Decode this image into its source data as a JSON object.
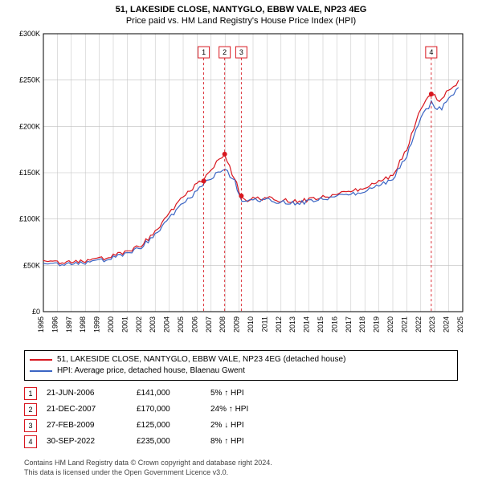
{
  "title_line1": "51, LAKESIDE CLOSE, NANTYGLO, EBBW VALE, NP23 4EG",
  "title_line2": "Price paid vs. HM Land Registry's House Price Index (HPI)",
  "title_fontsize": 11,
  "chart": {
    "type": "line",
    "background_color": "#ffffff",
    "grid_color": "#bfbfbf",
    "axis_color": "#000000",
    "xlim": [
      1995,
      2025
    ],
    "ylim": [
      0,
      300000
    ],
    "ytick_step": 50000,
    "yticklabels": [
      "£0",
      "£50K",
      "£100K",
      "£150K",
      "£200K",
      "£250K",
      "£300K"
    ],
    "xticklabels": [
      "1995",
      "1996",
      "1997",
      "1998",
      "1999",
      "2000",
      "2001",
      "2002",
      "2003",
      "2004",
      "2005",
      "2006",
      "2007",
      "2008",
      "2009",
      "2010",
      "2011",
      "2012",
      "2013",
      "2014",
      "2015",
      "2016",
      "2017",
      "2018",
      "2019",
      "2020",
      "2021",
      "2022",
      "2023",
      "2024",
      "2025"
    ],
    "tick_fontsize": 9,
    "line_width": 1.2,
    "series": [
      {
        "name": "property",
        "color": "#d8171f",
        "base": [
          [
            1995,
            55000
          ],
          [
            1996,
            54000
          ],
          [
            1997,
            53000
          ],
          [
            1998,
            55000
          ],
          [
            1999,
            57000
          ],
          [
            2000,
            60000
          ],
          [
            2001,
            65000
          ],
          [
            2002,
            72000
          ],
          [
            2003,
            85000
          ],
          [
            2004,
            105000
          ],
          [
            2005,
            125000
          ],
          [
            2006,
            138000
          ],
          [
            2006.47,
            141000
          ],
          [
            2007,
            155000
          ],
          [
            2007.97,
            170000
          ],
          [
            2008.5,
            150000
          ],
          [
            2009.16,
            125000
          ],
          [
            2009.6,
            120000
          ],
          [
            2010,
            124000
          ],
          [
            2011,
            122000
          ],
          [
            2012,
            120000
          ],
          [
            2013,
            119000
          ],
          [
            2014,
            121000
          ],
          [
            2015,
            123000
          ],
          [
            2016,
            126000
          ],
          [
            2017,
            130000
          ],
          [
            2018,
            135000
          ],
          [
            2019,
            140000
          ],
          [
            2020,
            148000
          ],
          [
            2021,
            175000
          ],
          [
            2022,
            220000
          ],
          [
            2022.75,
            235000
          ],
          [
            2023,
            232000
          ],
          [
            2023.5,
            228000
          ],
          [
            2024,
            240000
          ],
          [
            2024.7,
            248000
          ]
        ]
      },
      {
        "name": "hpi",
        "color": "#3b65c4",
        "base": [
          [
            1995,
            52000
          ],
          [
            1996,
            52000
          ],
          [
            1997,
            51000
          ],
          [
            1998,
            53000
          ],
          [
            1999,
            55000
          ],
          [
            2000,
            58000
          ],
          [
            2001,
            63000
          ],
          [
            2002,
            70000
          ],
          [
            2003,
            82000
          ],
          [
            2004,
            100000
          ],
          [
            2005,
            118000
          ],
          [
            2006,
            130000
          ],
          [
            2007,
            145000
          ],
          [
            2008,
            155000
          ],
          [
            2008.7,
            140000
          ],
          [
            2009.2,
            120000
          ],
          [
            2010,
            122000
          ],
          [
            2011,
            120000
          ],
          [
            2012,
            118000
          ],
          [
            2013,
            117000
          ],
          [
            2014,
            119000
          ],
          [
            2015,
            121000
          ],
          [
            2016,
            124000
          ],
          [
            2017,
            127000
          ],
          [
            2018,
            131000
          ],
          [
            2019,
            136000
          ],
          [
            2020,
            144000
          ],
          [
            2021,
            168000
          ],
          [
            2022,
            210000
          ],
          [
            2022.75,
            225000
          ],
          [
            2023,
            222000
          ],
          [
            2023.5,
            218000
          ],
          [
            2024,
            232000
          ],
          [
            2024.7,
            240000
          ]
        ]
      }
    ],
    "wiggle_amp": 2500,
    "wiggle_step": 0.18,
    "event_markers": [
      {
        "n": "1",
        "x": 2006.47,
        "y": 141000
      },
      {
        "n": "2",
        "x": 2007.97,
        "y": 170000
      },
      {
        "n": "3",
        "x": 2009.16,
        "y": 125000
      },
      {
        "n": "4",
        "x": 2022.75,
        "y": 235000
      }
    ],
    "marker_box_stroke": "#d8171f",
    "marker_dash": "3 3",
    "marker_dot_r": 3,
    "box_y_value": 280000
  },
  "legend": {
    "items": [
      {
        "color": "#d8171f",
        "label": "51, LAKESIDE CLOSE, NANTYGLO, EBBW VALE, NP23 4EG (detached house)"
      },
      {
        "color": "#3b65c4",
        "label": "HPI: Average price, detached house, Blaenau Gwent"
      }
    ]
  },
  "events_table": {
    "rows": [
      {
        "n": "1",
        "date": "21-JUN-2006",
        "price": "£141,000",
        "diff": "5% ↑ HPI"
      },
      {
        "n": "2",
        "date": "21-DEC-2007",
        "price": "£170,000",
        "diff": "24% ↑ HPI"
      },
      {
        "n": "3",
        "date": "27-FEB-2009",
        "price": "£125,000",
        "diff": "2% ↓ HPI"
      },
      {
        "n": "4",
        "date": "30-SEP-2022",
        "price": "£235,000",
        "diff": "8% ↑ HPI"
      }
    ],
    "box_stroke": "#d8171f"
  },
  "footer_line1": "Contains HM Land Registry data © Crown copyright and database right 2024.",
  "footer_line2": "This data is licensed under the Open Government Licence v3.0."
}
